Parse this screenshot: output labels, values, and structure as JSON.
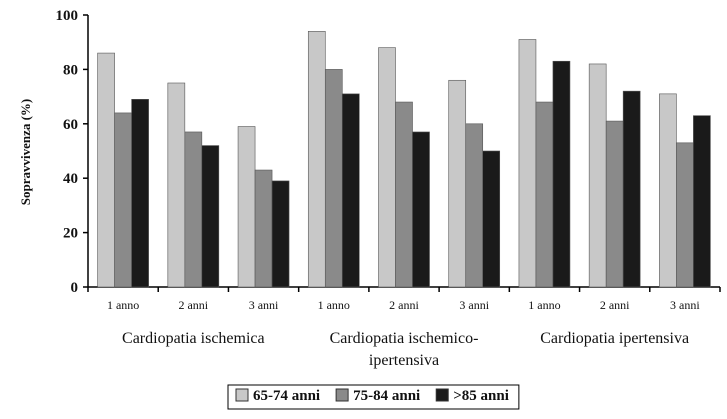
{
  "chart_data": {
    "type": "bar",
    "ylabel": "Sopravvivenza (%)",
    "ylim": [
      0,
      100
    ],
    "yticks": [
      0,
      20,
      40,
      60,
      80,
      100
    ],
    "grid": false,
    "legend_position": "bottom",
    "categories": [
      "1 anno",
      "2 anni",
      "3 anni",
      "1 anno",
      "2 anni",
      "3 anni",
      "1 anno",
      "2 anni",
      "3 anni"
    ],
    "groups": [
      {
        "label_lines": [
          "Cardiopatia ischemica"
        ],
        "span": [
          0,
          2
        ]
      },
      {
        "label_lines": [
          "Cardiopatia ischemico-",
          "ipertensiva"
        ],
        "span": [
          3,
          5
        ]
      },
      {
        "label_lines": [
          "Cardiopatia ipertensiva"
        ],
        "span": [
          6,
          8
        ]
      }
    ],
    "series": [
      {
        "name": "65-74 anni",
        "color": "#c8c8c8",
        "values": [
          86,
          75,
          59,
          94,
          88,
          76,
          91,
          82,
          71
        ]
      },
      {
        "name": "75-84 anni",
        "color": "#8a8a8a",
        "values": [
          64,
          57,
          43,
          80,
          68,
          60,
          68,
          61,
          53
        ]
      },
      {
        "name": ">85 anni",
        "color": "#1a1a1a",
        "values": [
          69,
          52,
          39,
          71,
          57,
          50,
          83,
          72,
          63
        ]
      }
    ]
  }
}
